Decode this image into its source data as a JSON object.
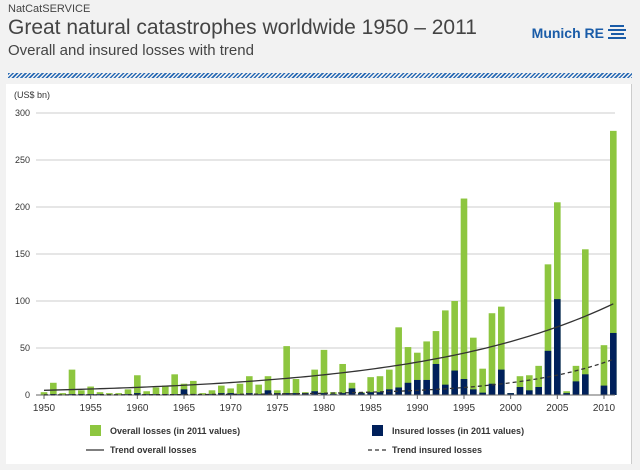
{
  "header": {
    "source": "NatCatSERVICE",
    "title": "Great natural catastrophes worldwide 1950 – 2011",
    "subtitle": "Overall and insured losses with trend",
    "logo": "Munich RE"
  },
  "chart_data": {
    "type": "bar",
    "title": "Great natural catastrophes worldwide 1950 – 2011",
    "subtitle": "Overall and insured losses with trend",
    "ylabel": "(US$ bn)",
    "ylim": [
      0,
      300
    ],
    "yticks": [
      0,
      50,
      100,
      150,
      200,
      250,
      300
    ],
    "xticks": [
      1950,
      1955,
      1960,
      1965,
      1970,
      1975,
      1980,
      1985,
      1990,
      1995,
      2000,
      2005,
      2010
    ],
    "grid": true,
    "legend_placement": "bottom",
    "colors": {
      "overall": "#8dc63f",
      "insured": "#00205b",
      "trend": "#333333"
    },
    "x": [
      1950,
      1951,
      1952,
      1953,
      1954,
      1955,
      1956,
      1957,
      1958,
      1959,
      1960,
      1961,
      1962,
      1963,
      1964,
      1965,
      1966,
      1967,
      1968,
      1969,
      1970,
      1971,
      1972,
      1973,
      1974,
      1975,
      1976,
      1977,
      1978,
      1979,
      1980,
      1981,
      1982,
      1983,
      1984,
      1985,
      1986,
      1987,
      1988,
      1989,
      1990,
      1991,
      1992,
      1993,
      1994,
      1995,
      1996,
      1997,
      1998,
      1999,
      2000,
      2001,
      2002,
      2003,
      2004,
      2005,
      2006,
      2007,
      2008,
      2009,
      2010,
      2011
    ],
    "series": [
      {
        "name": "Overall losses (in 2011 values)",
        "values": [
          3,
          13,
          2,
          27,
          5,
          9,
          3,
          2,
          2,
          6,
          21,
          4,
          8,
          10,
          22,
          12,
          15,
          2,
          5,
          10,
          7,
          12,
          20,
          11,
          20,
          5,
          52,
          17,
          3,
          27,
          48,
          3,
          33,
          13,
          3,
          19,
          20,
          27,
          72,
          51,
          45,
          57,
          68,
          90,
          100,
          209,
          61,
          28,
          87,
          94,
          2,
          20,
          21,
          31,
          139,
          205,
          4,
          31,
          155,
          0,
          53,
          281
        ]
      },
      {
        "name": "Insured losses (in 2011 values)",
        "values": [
          0.5,
          1,
          0.5,
          1,
          1,
          1,
          1,
          0.5,
          0.5,
          1,
          2,
          1,
          1,
          1,
          1,
          6,
          1,
          0.5,
          1,
          2,
          2,
          1,
          2,
          1,
          5,
          2,
          2,
          2,
          2,
          4,
          2,
          1,
          2,
          7,
          2,
          3,
          3,
          6,
          8,
          13,
          16,
          16,
          33,
          11,
          26,
          17,
          6,
          2.5,
          12,
          27,
          2,
          8.5,
          5,
          8.5,
          47,
          102,
          2,
          14.5,
          22,
          0,
          10,
          66
        ]
      },
      {
        "name": "Trend overall losses",
        "type": "line",
        "style": "solid",
        "from": [
          1950,
          5
        ],
        "to": [
          2011,
          97
        ]
      },
      {
        "name": "Trend insured losses",
        "type": "line",
        "style": "dashed",
        "from": [
          1950,
          0.1
        ],
        "to": [
          2011,
          38
        ]
      }
    ]
  }
}
